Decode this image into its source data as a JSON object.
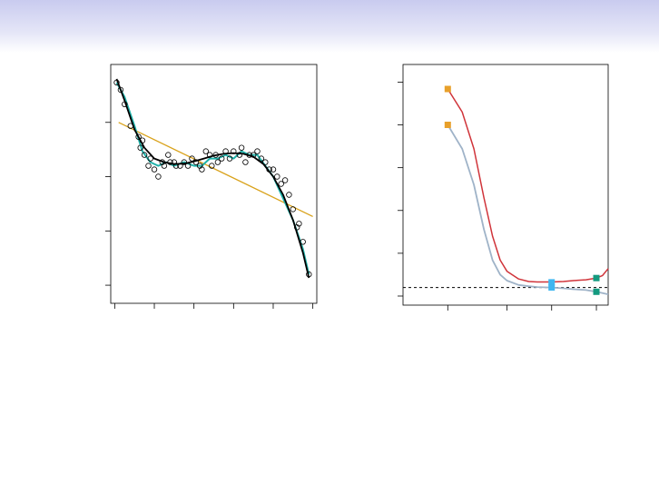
{
  "colors": {
    "header": "#c9cbef",
    "points": "#000000",
    "linear_fit": "#d9a21b",
    "wiggly_fit": "#20b2aa",
    "smooth_fit": "#000000",
    "test_error": "#d0343a",
    "train_error": "#9fb3c8",
    "marker_orange": "#e8a02a",
    "marker_blue": "#3fb6f0",
    "marker_green": "#139a7f",
    "irreducible_line": "#000000"
  },
  "chart_data": [
    {
      "type": "scatter",
      "title": "",
      "xlabel": "",
      "ylabel": "",
      "xlim": [
        -2,
        102
      ],
      "ylim": [
        -5,
        61
      ],
      "xticks": [
        0,
        20,
        40,
        60,
        80,
        100
      ],
      "yticks": [
        0,
        15,
        30,
        45
      ],
      "grid": false,
      "points": {
        "x": [
          1,
          3,
          5,
          8,
          12,
          14,
          13,
          15,
          17,
          18,
          20,
          22,
          24,
          25,
          27,
          28,
          30,
          31,
          33,
          35,
          37,
          39,
          41,
          43,
          44,
          46,
          48,
          49,
          51,
          52,
          54,
          56,
          58,
          60,
          63,
          64,
          66,
          68,
          70,
          72,
          74,
          76,
          78,
          80,
          82,
          84,
          86,
          88,
          90,
          92,
          93,
          95,
          98
        ],
        "y": [
          56,
          54,
          50,
          44,
          41,
          40,
          38,
          36,
          33,
          35,
          32,
          30,
          34,
          33,
          36,
          34,
          34,
          33,
          33,
          34,
          33,
          35,
          34,
          33,
          32,
          37,
          36,
          33,
          36,
          34,
          35,
          37,
          35,
          37,
          36,
          38,
          34,
          36,
          36,
          37,
          35,
          34,
          32,
          32,
          30,
          28,
          29,
          25,
          21,
          16,
          17,
          12,
          3
        ]
      },
      "series": [
        {
          "values": [
            [
              2,
              45
            ],
            [
              100,
              19
            ]
          ]
        },
        {
          "values": [
            [
              1,
              56
            ],
            [
              5,
              52
            ],
            [
              10,
              44
            ],
            [
              14,
              37
            ],
            [
              18,
              34
            ],
            [
              22,
              33
            ],
            [
              26,
              34
            ],
            [
              30,
              33
            ],
            [
              35,
              34
            ],
            [
              40,
              33
            ],
            [
              44,
              33
            ],
            [
              48,
              35
            ],
            [
              52,
              35
            ],
            [
              56,
              36
            ],
            [
              60,
              35
            ],
            [
              64,
              37
            ],
            [
              68,
              36
            ],
            [
              72,
              36
            ],
            [
              76,
              33
            ],
            [
              80,
              30
            ],
            [
              85,
              24
            ],
            [
              90,
              18
            ],
            [
              95,
              10
            ],
            [
              98,
              3
            ]
          ]
        },
        {
          "values": [
            [
              1,
              57
            ],
            [
              5,
              51
            ],
            [
              10,
              43
            ],
            [
              15,
              38
            ],
            [
              20,
              35
            ],
            [
              25,
              34
            ],
            [
              30,
              33.5
            ],
            [
              35,
              33.6
            ],
            [
              40,
              34.2
            ],
            [
              45,
              35
            ],
            [
              50,
              35.8
            ],
            [
              55,
              36.3
            ],
            [
              60,
              36.5
            ],
            [
              65,
              36.3
            ],
            [
              70,
              35.5
            ],
            [
              75,
              33.5
            ],
            [
              80,
              30
            ],
            [
              85,
              25
            ],
            [
              90,
              18
            ],
            [
              95,
              9
            ],
            [
              98,
              2
            ]
          ]
        }
      ]
    },
    {
      "type": "line",
      "title": "",
      "xlabel": "",
      "ylabel": "",
      "xlim": [
        1,
        24
      ],
      "ylim": [
        0,
        2.6
      ],
      "xticks": [
        2,
        5,
        10,
        20
      ],
      "yticks": [
        0,
        0.5,
        1.0,
        1.5,
        2.0,
        2.5
      ],
      "xscale": "log",
      "grid": false,
      "series": [
        {
          "values": [
            [
              2,
              2.42
            ],
            [
              2.5,
              2.15
            ],
            [
              3,
              1.72
            ],
            [
              3.5,
              1.15
            ],
            [
              4,
              0.7
            ],
            [
              4.5,
              0.42
            ],
            [
              5,
              0.29
            ],
            [
              6,
              0.2
            ],
            [
              7,
              0.17
            ],
            [
              8,
              0.165
            ],
            [
              10,
              0.165
            ],
            [
              12,
              0.17
            ],
            [
              14,
              0.18
            ],
            [
              17,
              0.19
            ],
            [
              20,
              0.21
            ],
            [
              22,
              0.24
            ],
            [
              24,
              0.32
            ]
          ]
        },
        {
          "values": [
            [
              2,
              2.0
            ],
            [
              2.5,
              1.72
            ],
            [
              3,
              1.3
            ],
            [
              3.5,
              0.78
            ],
            [
              4,
              0.42
            ],
            [
              4.5,
              0.25
            ],
            [
              5,
              0.18
            ],
            [
              6,
              0.13
            ],
            [
              7,
              0.115
            ],
            [
              8,
              0.105
            ],
            [
              10,
              0.1
            ],
            [
              12,
              0.09
            ],
            [
              14,
              0.08
            ],
            [
              17,
              0.07
            ],
            [
              20,
              0.05
            ],
            [
              22,
              0.035
            ],
            [
              24,
              0.02
            ]
          ]
        }
      ],
      "hline": 0.1,
      "markers": [
        {
          "x": 2,
          "y": 2.42,
          "color": "orange"
        },
        {
          "x": 2,
          "y": 2.0,
          "color": "orange"
        },
        {
          "x": 10,
          "y": 0.16,
          "color": "blue"
        },
        {
          "x": 10,
          "y": 0.1,
          "color": "blue"
        },
        {
          "x": 20,
          "y": 0.21,
          "color": "green"
        },
        {
          "x": 20,
          "y": 0.05,
          "color": "green"
        }
      ]
    }
  ]
}
